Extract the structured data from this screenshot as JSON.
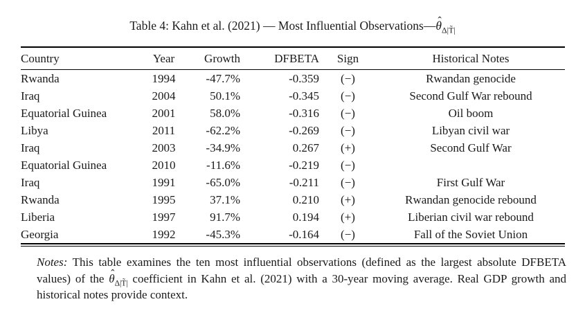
{
  "colors": {
    "text": "#1a1a1a",
    "background": "#ffffff",
    "rule": "#000000"
  },
  "title": {
    "prefix": "Table 4: Kahn et al. (2021) — Most Influential Observations—"
  },
  "formula": {
    "theta": "θ",
    "hat": "ˆ",
    "subscript": "Δ|T̃|"
  },
  "table": {
    "columns": [
      "Country",
      "Year",
      "Growth",
      "DFBETA",
      "Sign",
      "Historical Notes"
    ],
    "rows": [
      [
        "Rwanda",
        "1994",
        "-47.7%",
        "-0.359",
        "(−)",
        "Rwandan genocide"
      ],
      [
        "Iraq",
        "2004",
        "50.1%",
        "-0.345",
        "(−)",
        "Second Gulf War rebound"
      ],
      [
        "Equatorial Guinea",
        "2001",
        "58.0%",
        "-0.316",
        "(−)",
        "Oil boom"
      ],
      [
        "Libya",
        "2011",
        "-62.2%",
        "-0.269",
        "(−)",
        "Libyan civil war"
      ],
      [
        "Iraq",
        "2003",
        "-34.9%",
        "0.267",
        "(+)",
        "Second Gulf War"
      ],
      [
        "Equatorial Guinea",
        "2010",
        "-11.6%",
        "-0.219",
        "(−)",
        ""
      ],
      [
        "Iraq",
        "1991",
        "-65.0%",
        "-0.211",
        "(−)",
        "First Gulf War"
      ],
      [
        "Rwanda",
        "1995",
        "37.1%",
        "0.210",
        "(+)",
        "Rwandan genocide rebound"
      ],
      [
        "Liberia",
        "1997",
        "91.7%",
        "0.194",
        "(+)",
        "Liberian civil war rebound"
      ],
      [
        "Georgia",
        "1992",
        "-45.3%",
        "-0.164",
        "(−)",
        "Fall of the Soviet Union"
      ]
    ]
  },
  "notes": {
    "label": "Notes:",
    "before_formula": " This table examines the ten most influential observations (defined as the largest absolute DFBETA values) of the ",
    "after_formula": " coefficient in Kahn et al. (2021) with a 30-year moving average. Real GDP growth and historical notes provide context."
  }
}
